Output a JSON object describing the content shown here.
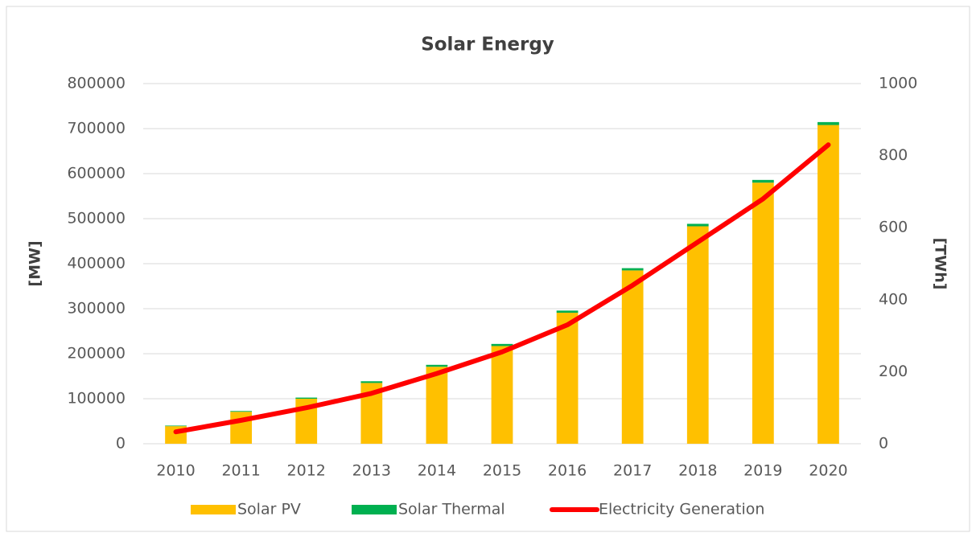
{
  "chart_data": {
    "type": "bar-line",
    "title": "Solar Energy",
    "categories": [
      "2010",
      "2011",
      "2012",
      "2013",
      "2014",
      "2015",
      "2016",
      "2017",
      "2018",
      "2019",
      "2020"
    ],
    "series": [
      {
        "name": "Solar PV",
        "color": "#ffc000",
        "type": "bar",
        "values": [
          39000,
          71000,
          100000,
          135000,
          171000,
          217000,
          291000,
          385000,
          483000,
          580000,
          708000
        ]
      },
      {
        "name": "Solar Thermal",
        "color": "#00b050",
        "type": "bar",
        "values": [
          1300,
          1700,
          2500,
          3800,
          4300,
          4700,
          4800,
          5000,
          5500,
          6000,
          6500
        ]
      },
      {
        "name": "Electricity Generation",
        "color": "#ff0000",
        "type": "line",
        "axis": "y2",
        "values": [
          33,
          65,
          100,
          140,
          195,
          255,
          330,
          440,
          560,
          680,
          830
        ]
      }
    ],
    "ylabel": "[MW]",
    "y2label": "[TWh]",
    "ylim": [
      0,
      800000
    ],
    "yticks": [
      0,
      100000,
      200000,
      300000,
      400000,
      500000,
      600000,
      700000,
      800000
    ],
    "y2lim": [
      0,
      1000
    ],
    "y2ticks": [
      0,
      200,
      400,
      600,
      800,
      1000
    ],
    "grid": true,
    "legend": "bottom"
  }
}
